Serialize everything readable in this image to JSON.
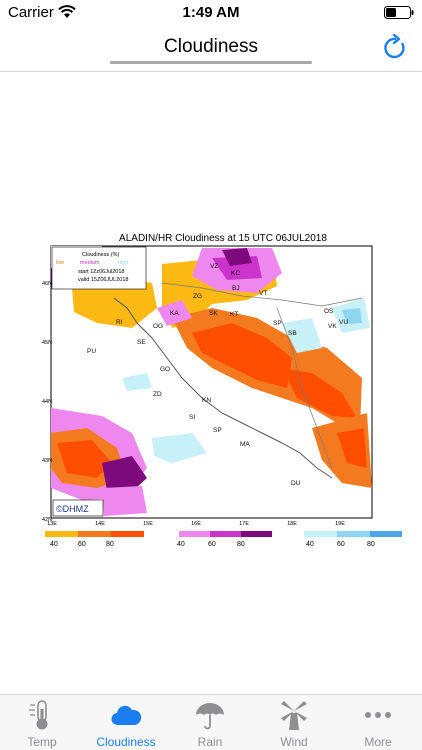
{
  "status_bar": {
    "carrier": "Carrier",
    "time": "1:49 AM"
  },
  "nav": {
    "title": "Cloudiness"
  },
  "map": {
    "title": "ALADIN/HR Cloudiness at 15 UTC 06JUL2018",
    "legend": {
      "heading": "Cloudiness (%)",
      "low": "low",
      "medium": "medium",
      "high": "high",
      "start": "start 12z06Jul2018",
      "valid": "valid 15Z06JUL2018"
    },
    "credit": "©DHMZ",
    "lat_ticks": [
      "46N",
      "45N",
      "44N",
      "43N",
      "42N"
    ],
    "lon_ticks": [
      "13E",
      "14E",
      "15E",
      "16E",
      "17E",
      "18E",
      "19E"
    ],
    "cities": [
      "VZ",
      "KC",
      "BJ",
      "VT",
      "ZG",
      "KA",
      "SK",
      "KT",
      "OS",
      "VK",
      "VU",
      "RI",
      "OG",
      "SP",
      "SB",
      "PU",
      "SE",
      "GO",
      "ZD",
      "KN",
      "SI",
      "SP",
      "MA",
      "DU"
    ],
    "scales": {
      "low": {
        "labels": [
          "40",
          "60",
          "80"
        ],
        "colors": [
          "#fdb913",
          "#f47a20",
          "#ff4e00"
        ]
      },
      "medium": {
        "labels": [
          "40",
          "60",
          "80"
        ],
        "colors": [
          "#ee88ee",
          "#cc33cc",
          "#7d0a7d"
        ]
      },
      "high": {
        "labels": [
          "40",
          "60",
          "80"
        ],
        "colors": [
          "#c7f0f8",
          "#8fd5f0",
          "#4aa8e8"
        ]
      }
    }
  },
  "tabs": [
    {
      "label": "Temp",
      "icon": "thermometer-icon"
    },
    {
      "label": "Cloudiness",
      "icon": "cloud-icon",
      "active": true
    },
    {
      "label": "Rain",
      "icon": "umbrella-icon"
    },
    {
      "label": "Wind",
      "icon": "windmill-icon"
    },
    {
      "label": "More",
      "icon": "more-icon"
    }
  ]
}
